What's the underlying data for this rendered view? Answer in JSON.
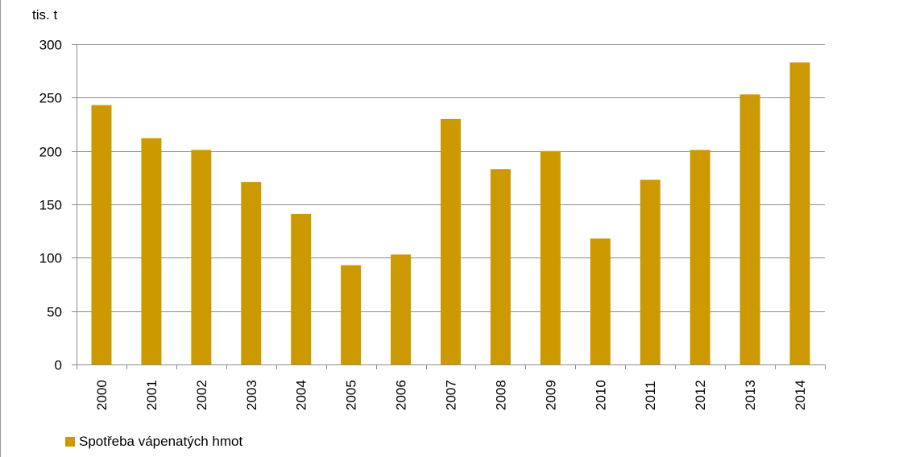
{
  "chart_data": {
    "type": "bar",
    "title": "",
    "ylabel": "tis. t",
    "xlabel": "",
    "categories": [
      "2000",
      "2001",
      "2002",
      "2003",
      "2004",
      "2005",
      "2006",
      "2007",
      "2008",
      "2009",
      "2010",
      "2011",
      "2012",
      "2013",
      "2014"
    ],
    "series": [
      {
        "name": "Spotřeba vápenatých hmot",
        "values": [
          243,
          212,
          201,
          171,
          141,
          93,
          103,
          230,
          183,
          200,
          118,
          173,
          201,
          253,
          283
        ]
      }
    ],
    "ylim": [
      0,
      300
    ],
    "yticks": [
      "0",
      "50",
      "100",
      "150",
      "200",
      "250",
      "300"
    ],
    "grid": true,
    "legend_position": "bottom-left",
    "bar_color": "#CC9A00"
  }
}
